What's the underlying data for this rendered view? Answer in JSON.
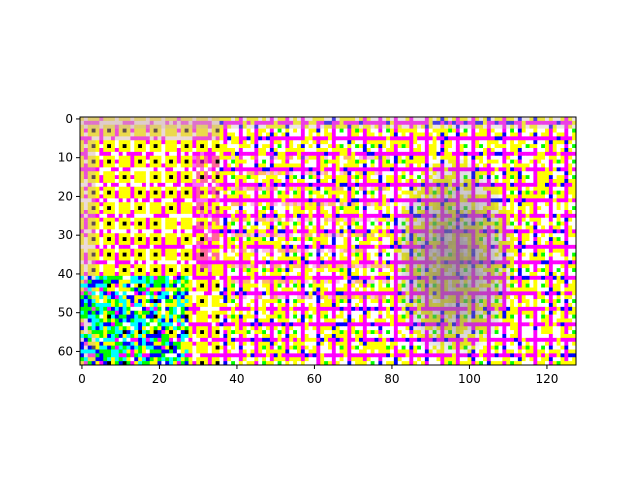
{
  "chart_data": {
    "type": "heatmap",
    "title": "",
    "xlabel": "",
    "ylabel": "",
    "image_shape": [
      64,
      128
    ],
    "xlim": [
      -0.5,
      127.5
    ],
    "ylim": [
      63.5,
      -0.5
    ],
    "y_axis_inverted": true,
    "xticks": [
      0,
      20,
      40,
      60,
      80,
      100,
      120
    ],
    "yticks": [
      0,
      10,
      20,
      30,
      40,
      50,
      60
    ],
    "xtick_labels": [
      "0",
      "20",
      "40",
      "60",
      "80",
      "100",
      "120"
    ],
    "ytick_labels": [
      "0",
      "10",
      "20",
      "30",
      "40",
      "50",
      "60"
    ],
    "grid": false,
    "legend": "none",
    "palette": [
      "#ffff00",
      "#ff00ff",
      "#00ffff",
      "#ffffff",
      "#0000ff",
      "#00ff00",
      "#000000"
    ],
    "regions": [
      {
        "description_color": "#ffff00",
        "cols": [
          0,
          36
        ],
        "rows": [
          0,
          63
        ]
      },
      {
        "description_color": "#ff00ff",
        "cols": [
          36,
          128
        ],
        "rows": [
          0,
          63
        ]
      },
      {
        "description_color": "#00ffff",
        "cols": [
          0,
          28
        ],
        "rows": [
          40,
          63
        ]
      },
      {
        "description_color": "#808080",
        "cols": [
          80,
          112
        ],
        "rows": [
          10,
          63
        ]
      }
    ]
  }
}
